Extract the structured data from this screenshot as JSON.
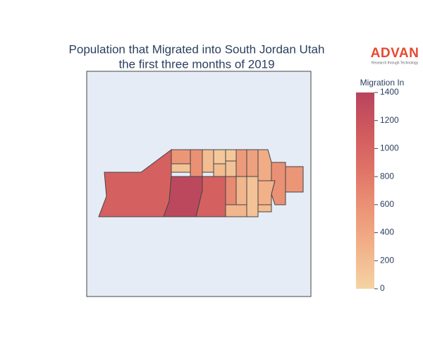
{
  "chart_data": {
    "type": "choropleth",
    "title": [
      "Population that Migrated into South Jordan Utah",
      "the first three months of 2019"
    ],
    "logo": {
      "name": "ADVAN",
      "tagline": "Research through Technology"
    },
    "colorbar": {
      "title": "Migration In",
      "range": [
        0,
        1400
      ],
      "ticks": [
        0,
        200,
        400,
        600,
        800,
        1000,
        1200,
        1400
      ],
      "colorscale": [
        "#f5d3a4",
        "#f2b38a",
        "#ec9577",
        "#e07467",
        "#d05a5e",
        "#b8445e"
      ]
    },
    "values": [
      1050,
      1350,
      1050,
      550,
      150,
      600,
      200,
      100,
      200,
      100,
      150,
      500,
      450,
      350,
      650,
      250,
      250,
      150,
      300,
      600,
      550,
      200
    ]
  }
}
